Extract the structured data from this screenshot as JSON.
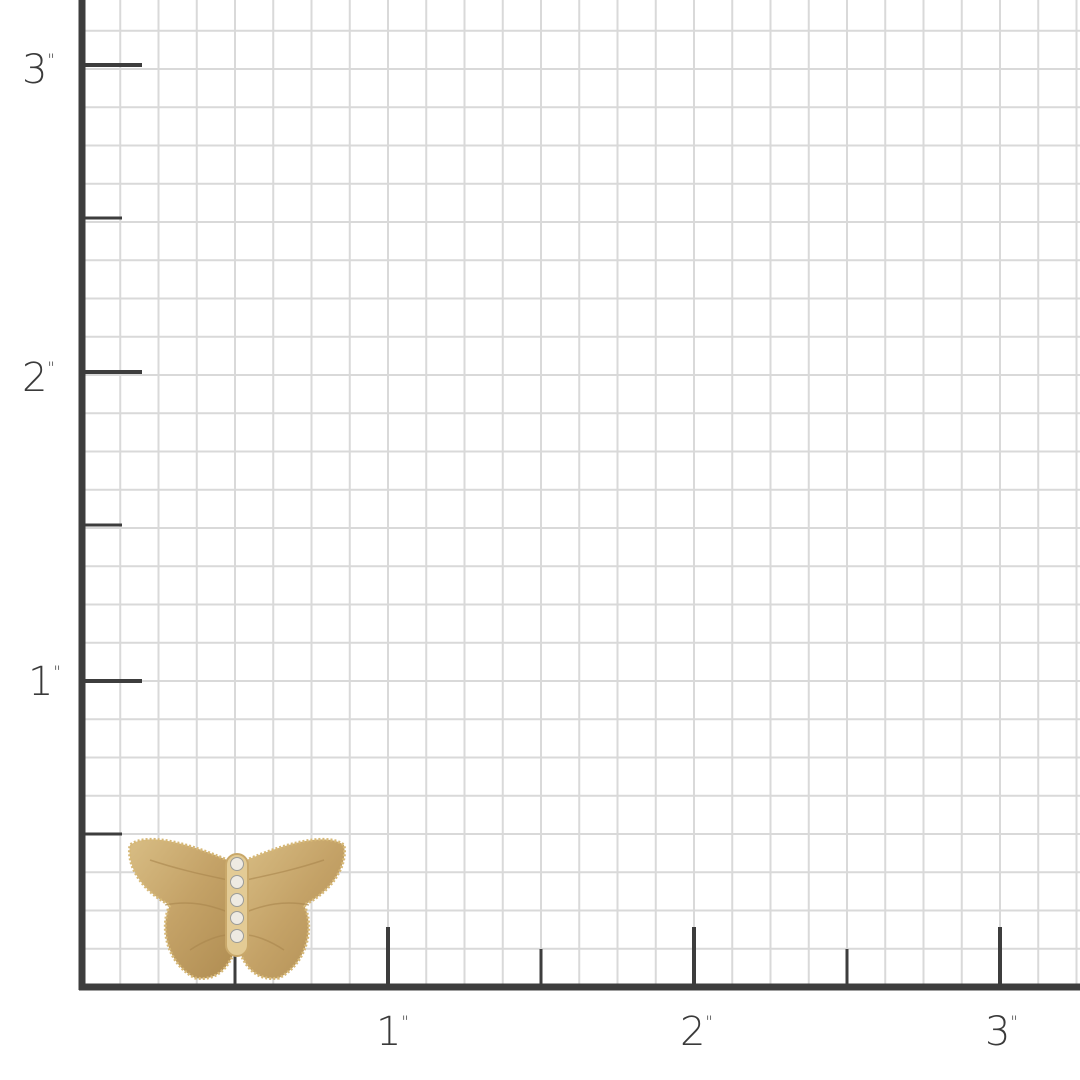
{
  "ruler": {
    "unit_symbol": "\"",
    "y_labels": [
      "3",
      "2",
      "1"
    ],
    "x_labels": [
      "1",
      "2",
      "3"
    ],
    "divisions_per_inch": 8
  },
  "product": {
    "icon": "gold-diamond-butterfly-icon",
    "metal_color": "#c9a86a",
    "stone_count": 5
  },
  "colors": {
    "axis": "#3d3d3d",
    "grid": "#d9d9d9"
  }
}
